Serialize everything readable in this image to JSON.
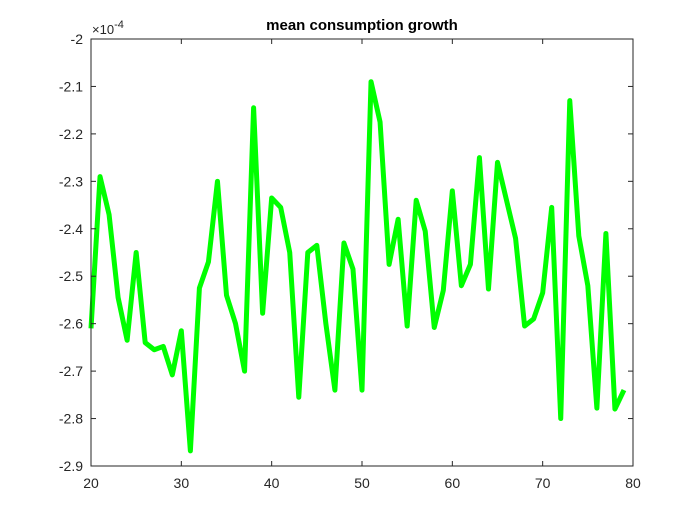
{
  "chart_data": {
    "type": "line",
    "title": "mean consumption growth",
    "xlabel": "",
    "ylabel": "",
    "exponent_prefix": "×10",
    "exponent_power": "-4",
    "xlim": [
      20,
      80
    ],
    "ylim": [
      -2.9,
      -2.0
    ],
    "xticks": [
      20,
      30,
      40,
      50,
      60,
      70,
      80
    ],
    "yticks": [
      -2.0,
      -2.1,
      -2.2,
      -2.3,
      -2.4,
      -2.5,
      -2.6,
      -2.7,
      -2.8,
      -2.9
    ],
    "xtick_labels": [
      "20",
      "30",
      "40",
      "50",
      "60",
      "70",
      "80"
    ],
    "ytick_labels": [
      "-2",
      "-2.1",
      "-2.2",
      "-2.3",
      "-2.4",
      "-2.5",
      "-2.6",
      "-2.7",
      "-2.8",
      "-2.9"
    ],
    "grid": false,
    "line_color": "#00ff00",
    "series": [
      {
        "x": [
          20,
          21,
          22,
          23,
          24,
          25,
          26,
          27,
          28,
          29,
          30,
          31,
          32,
          33,
          34,
          35,
          36,
          37,
          38,
          39,
          40,
          41,
          42,
          43,
          44,
          45,
          46,
          47,
          48,
          49,
          50,
          51,
          52,
          53,
          54,
          55,
          56,
          57,
          58,
          59,
          60,
          61,
          62,
          63,
          64,
          65,
          66,
          67,
          68,
          69,
          70,
          71,
          72,
          73,
          74,
          75,
          76,
          77,
          78,
          79
        ],
        "values": [
          -2.61,
          -2.29,
          -2.37,
          -2.545,
          -2.635,
          -2.45,
          -2.64,
          -2.655,
          -2.648,
          -2.708,
          -2.615,
          -2.868,
          -2.525,
          -2.47,
          -2.3,
          -2.54,
          -2.6,
          -2.7,
          -2.145,
          -2.578,
          -2.335,
          -2.355,
          -2.45,
          -2.755,
          -2.45,
          -2.435,
          -2.6,
          -2.74,
          -2.43,
          -2.485,
          -2.74,
          -2.09,
          -2.175,
          -2.475,
          -2.38,
          -2.605,
          -2.34,
          -2.405,
          -2.608,
          -2.53,
          -2.32,
          -2.52,
          -2.475,
          -2.25,
          -2.527,
          -2.26,
          -2.34,
          -2.42,
          -2.605,
          -2.59,
          -2.535,
          -2.355,
          -2.8,
          -2.13,
          -2.415,
          -2.52,
          -2.778,
          -2.41,
          -2.78,
          -2.74
        ]
      }
    ]
  }
}
